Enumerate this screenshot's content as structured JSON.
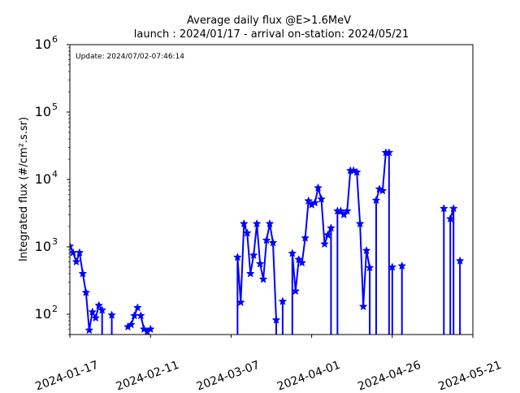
{
  "chart_data": {
    "type": "line",
    "title": "Average daily flux @E>1.6MeV",
    "subtitle": "launch : 2024/01/17 - arrival on-station: 2024/05/21",
    "annotation": "Update: 2024/07/02-07:46:14",
    "xlabel": "",
    "ylabel": "Integrated flux (#/cm².s.sr)",
    "yscale": "log",
    "xlim": [
      "2024-01-17",
      "2024-05-21"
    ],
    "ylim": [
      50,
      1000000
    ],
    "x_tick_labels": [
      "2024-01-17",
      "2024-02-11",
      "2024-03-07",
      "2024-04-01",
      "2024-04-26",
      "2024-05-21"
    ],
    "y_tick_labels": [
      {
        "base": "10",
        "exp": "2",
        "value": 100
      },
      {
        "base": "10",
        "exp": "3",
        "value": 1000
      },
      {
        "base": "10",
        "exp": "4",
        "value": 10000
      },
      {
        "base": "10",
        "exp": "5",
        "value": 100000
      },
      {
        "base": "10",
        "exp": "6",
        "value": 1000000
      }
    ],
    "grid": false,
    "legend": "none",
    "color": "#0000ff",
    "marker": "star",
    "series": [
      {
        "points": [
          [
            "2024-01-17",
            1020
          ],
          [
            "2024-01-18",
            820
          ],
          [
            "2024-01-19",
            600
          ],
          [
            "2024-01-20",
            820
          ],
          [
            "2024-01-21",
            400
          ],
          [
            "2024-01-22",
            210
          ],
          [
            "2024-01-23",
            58
          ],
          [
            "2024-01-24",
            108
          ],
          [
            "2024-01-25",
            88
          ],
          [
            "2024-01-26",
            135
          ],
          [
            "2024-01-27",
            115
          ],
          [
            "2024-01-27",
            50
          ],
          null,
          [
            "2024-01-30",
            97
          ],
          [
            "2024-01-30",
            50
          ],
          null,
          [
            "2024-02-04",
            65
          ],
          [
            "2024-02-05",
            70
          ],
          [
            "2024-02-06",
            95
          ],
          [
            "2024-02-07",
            125
          ],
          null,
          [
            "2024-02-08",
            95
          ],
          [
            "2024-02-09",
            60
          ],
          [
            "2024-02-10",
            55
          ],
          [
            "2024-02-11",
            60
          ],
          null,
          [
            "2024-03-09",
            50
          ],
          [
            "2024-03-09",
            700
          ],
          [
            "2024-03-10",
            150
          ],
          [
            "2024-03-11",
            2200
          ],
          [
            "2024-03-12",
            1600
          ],
          [
            "2024-03-13",
            400
          ],
          [
            "2024-03-14",
            750
          ],
          [
            "2024-03-15",
            2200
          ],
          [
            "2024-03-16",
            560
          ],
          [
            "2024-03-17",
            330
          ],
          [
            "2024-03-18",
            1250
          ],
          [
            "2024-03-19",
            2200
          ],
          [
            "2024-03-20",
            1150
          ],
          [
            "2024-03-21",
            82
          ],
          [
            "2024-03-21",
            50
          ],
          null,
          [
            "2024-03-23",
            50
          ],
          [
            "2024-03-23",
            155
          ],
          [
            "2024-03-23",
            50
          ],
          null,
          [
            "2024-03-26",
            50
          ],
          [
            "2024-03-26",
            800
          ],
          [
            "2024-03-27",
            220
          ],
          [
            "2024-03-28",
            650
          ],
          [
            "2024-03-29",
            580
          ],
          [
            "2024-03-30",
            1350
          ],
          [
            "2024-03-31",
            4800
          ],
          [
            "2024-04-01",
            4200
          ],
          [
            "2024-04-02",
            4500
          ],
          [
            "2024-04-03",
            7500
          ],
          [
            "2024-04-04",
            5100
          ],
          [
            "2024-04-05",
            1100
          ],
          [
            "2024-04-06",
            1500
          ],
          [
            "2024-04-07",
            1900
          ],
          [
            "2024-04-07",
            50
          ],
          null,
          [
            "2024-04-09",
            50
          ],
          [
            "2024-04-09",
            3400
          ],
          [
            "2024-04-10",
            3400
          ],
          [
            "2024-04-11",
            3000
          ],
          [
            "2024-04-12",
            3400
          ],
          [
            "2024-04-13",
            13500
          ],
          [
            "2024-04-14",
            13500
          ],
          [
            "2024-04-15",
            12800
          ],
          [
            "2024-04-16",
            2200
          ],
          [
            "2024-04-17",
            130
          ],
          [
            "2024-04-18",
            880
          ],
          [
            "2024-04-19",
            490
          ],
          [
            "2024-04-19",
            50
          ],
          null,
          [
            "2024-04-21",
            50
          ],
          [
            "2024-04-21",
            4900
          ],
          [
            "2024-04-22",
            7200
          ],
          [
            "2024-04-23",
            6800
          ],
          [
            "2024-04-24",
            25000
          ],
          [
            "2024-04-25",
            25000
          ],
          [
            "2024-04-25",
            50
          ],
          null,
          [
            "2024-04-26",
            50
          ],
          [
            "2024-04-26",
            500
          ],
          [
            "2024-04-26",
            50
          ],
          null,
          [
            "2024-04-29",
            50
          ],
          [
            "2024-04-29",
            520
          ],
          [
            "2024-04-29",
            50
          ],
          null,
          [
            "2024-05-12",
            50
          ],
          [
            "2024-05-12",
            3700
          ],
          [
            "2024-05-12",
            50
          ],
          null,
          [
            "2024-05-14",
            50
          ],
          [
            "2024-05-14",
            2600
          ],
          [
            "2024-05-15",
            3700
          ],
          [
            "2024-05-15",
            50
          ],
          null,
          [
            "2024-05-17",
            50
          ],
          [
            "2024-05-17",
            620
          ],
          [
            "2024-05-17",
            50
          ]
        ]
      }
    ]
  }
}
